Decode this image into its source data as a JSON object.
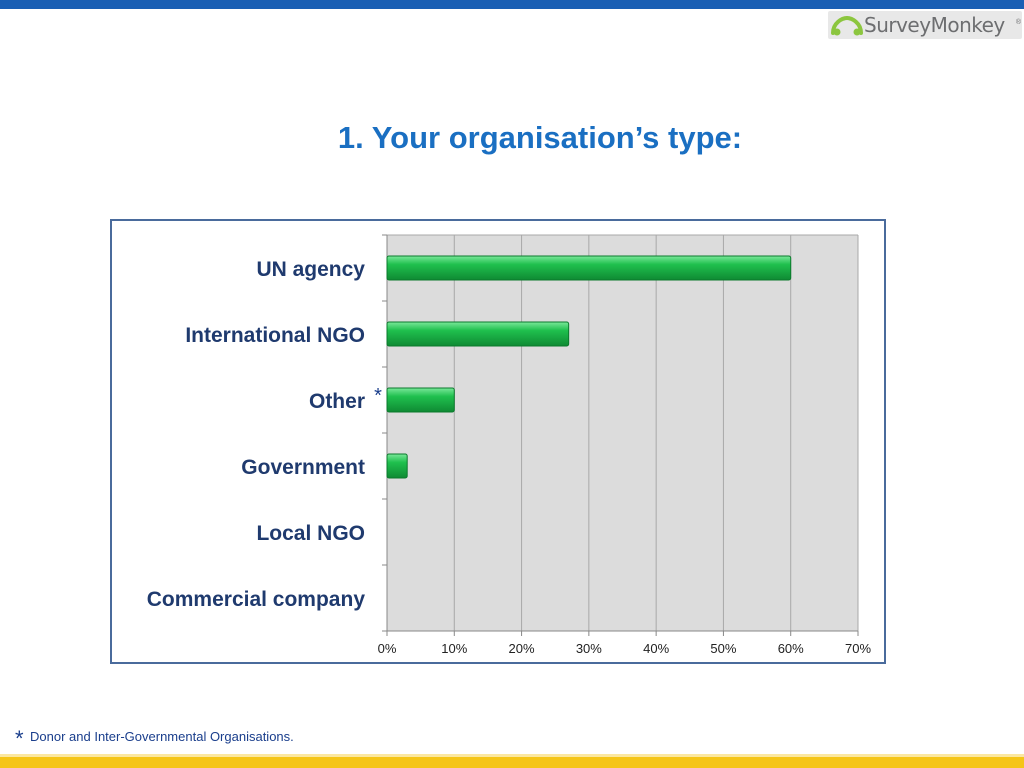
{
  "page": {
    "title": "1. Your organisation’s type:",
    "logo_text": "SurveyMonkey",
    "logo_reg": "®",
    "footnote_marker": "*",
    "footnote_text": "Donor and Inter-Governmental Organisations."
  },
  "colors": {
    "top_bar": "#1a5fb4",
    "bottom_bar": "#f5c518",
    "title": "#1a6fc2",
    "bar_fill": "#1fc04e",
    "plot_bg": "#dcdcdc",
    "category_label": "#1f3a6e"
  },
  "chart_data": {
    "type": "bar",
    "orientation": "horizontal",
    "categories": [
      "UN agency",
      "International NGO",
      "Other",
      "Government",
      "Local NGO",
      "Commercial company"
    ],
    "values": [
      60,
      27,
      10,
      3,
      0,
      0
    ],
    "annotations": [
      {
        "category": "Other",
        "text": "*"
      }
    ],
    "xlim": [
      0,
      70
    ],
    "xticks": [
      "0%",
      "10%",
      "20%",
      "30%",
      "40%",
      "50%",
      "60%",
      "70%"
    ],
    "grid": true,
    "legend": "none"
  }
}
